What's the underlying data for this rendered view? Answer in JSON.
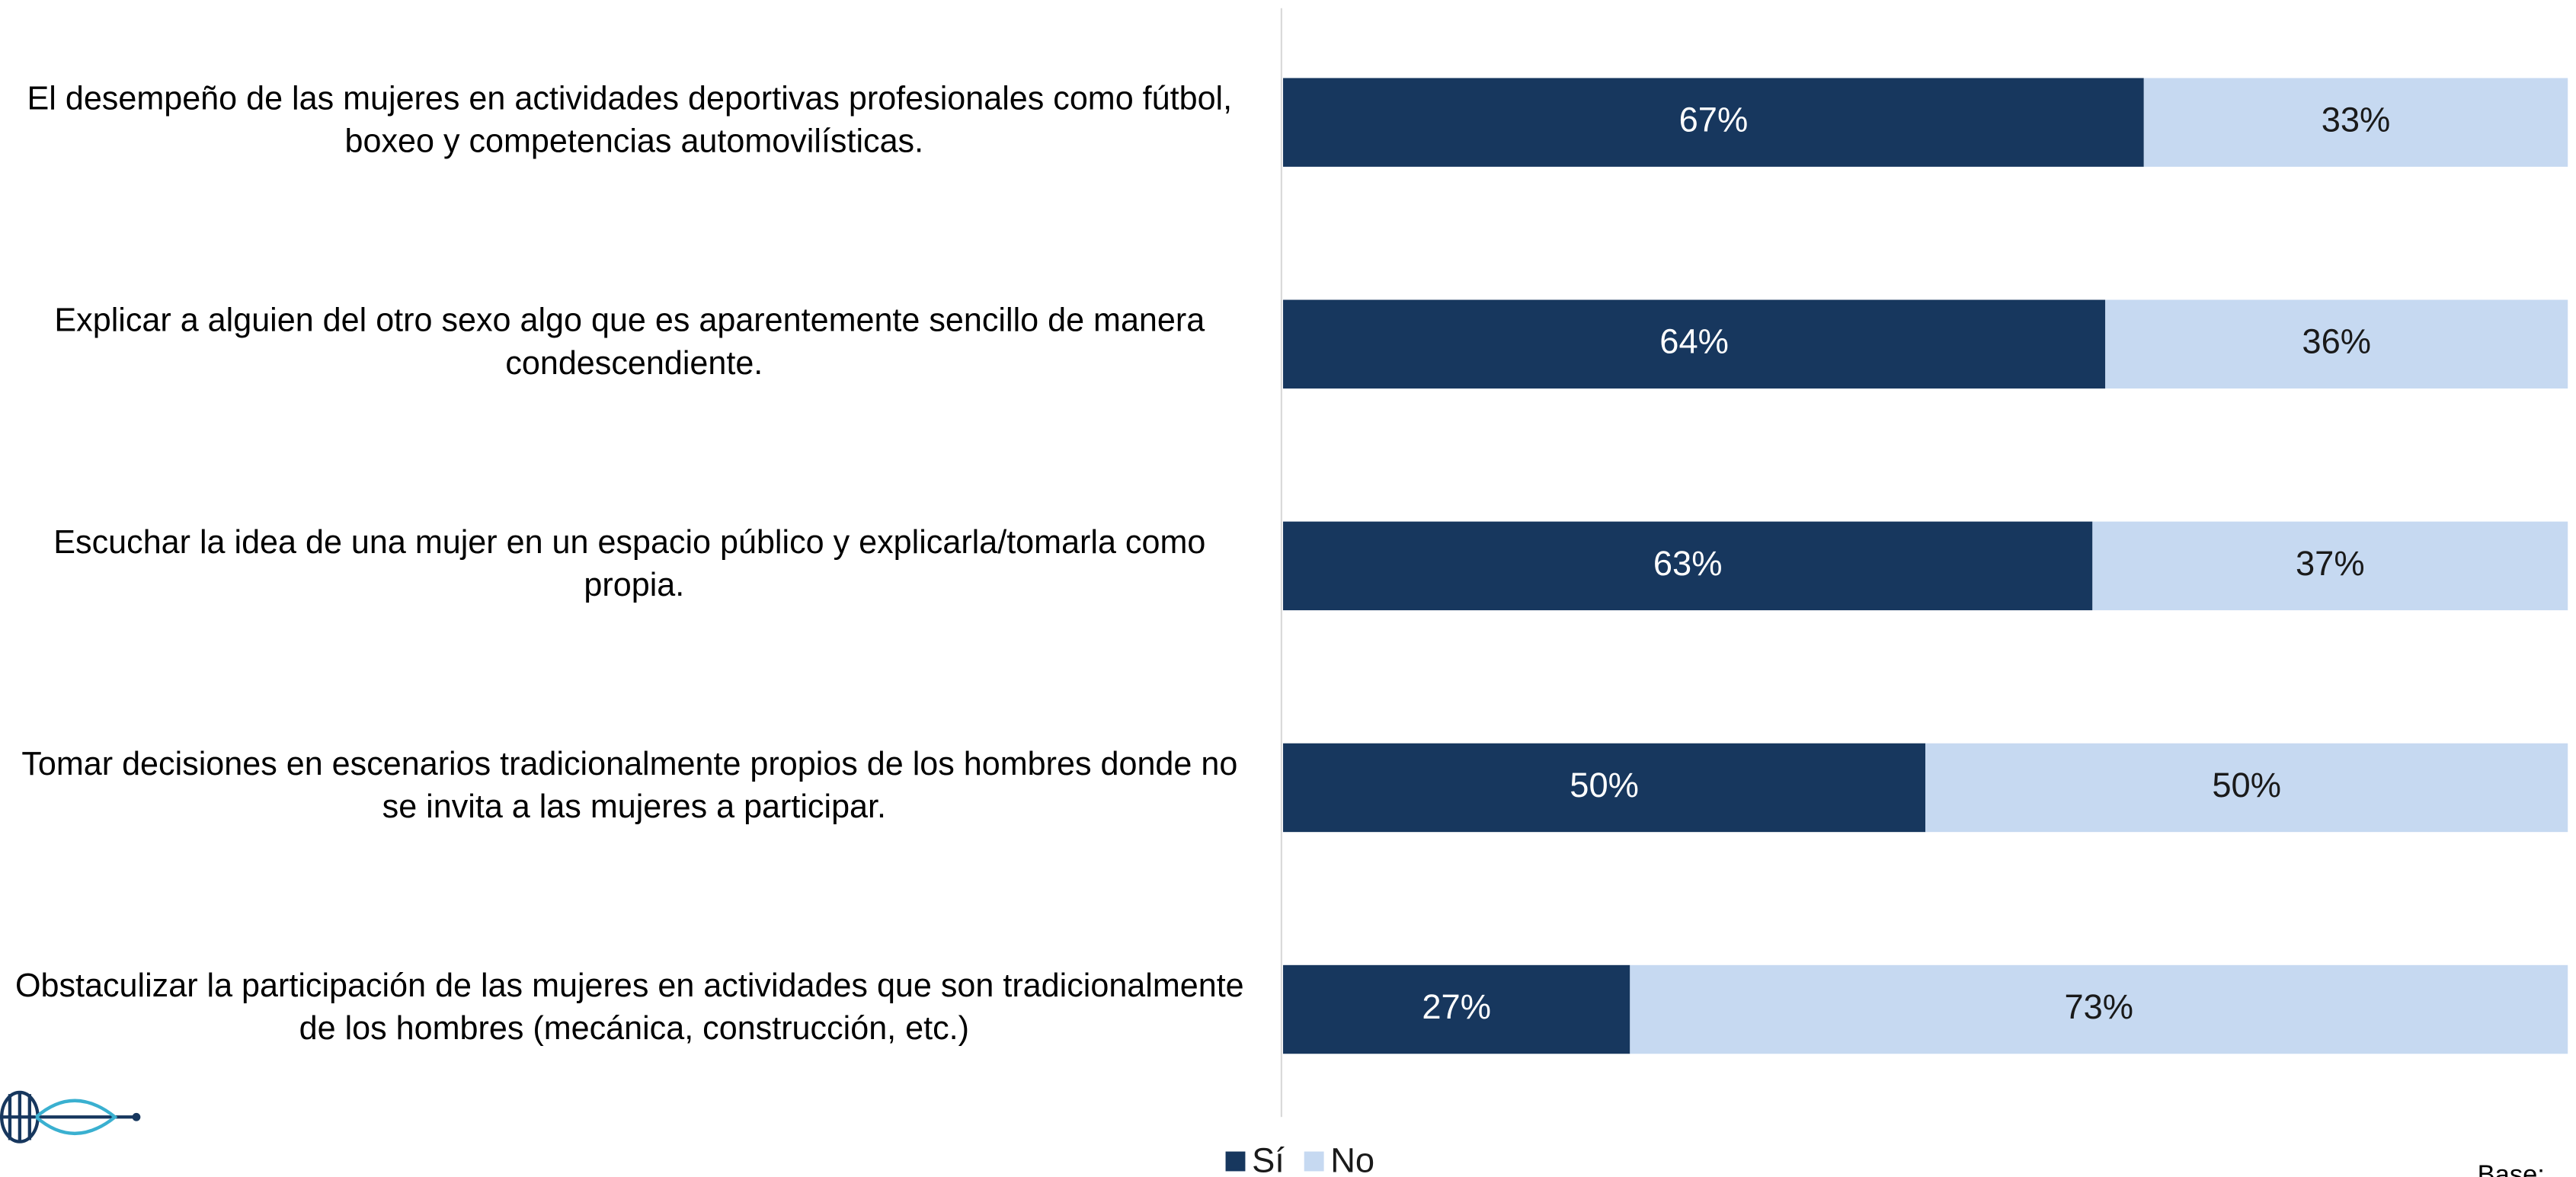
{
  "chart_data": {
    "type": "stacked_bar_horizontal",
    "categories": [
      "El desempeño de las mujeres en actividades deportivas profesionales como fútbol, boxeo y competencias automovilísticas.",
      "Explicar a alguien del otro sexo algo que es aparentemente sencillo de manera condescendiente.",
      "Escuchar la idea de una mujer en un espacio público y explicarla/tomarla como propia.",
      "Tomar decisiones en escenarios tradicionalmente propios de los hombres donde no se invita a las mujeres a participar.",
      "Obstaculizar la participación de las mujeres en actividades que son tradicionalmente de los hombres (mecánica, construcción, etc.)"
    ],
    "series": [
      {
        "name": "Sí",
        "color": "#17375e",
        "values": [
          67,
          64,
          63,
          50,
          27
        ],
        "value_labels": [
          "67%",
          "64%",
          "63%",
          "50%",
          "27%"
        ]
      },
      {
        "name": "No",
        "color": "#c6d9f1",
        "values": [
          33,
          36,
          37,
          50,
          73
        ],
        "value_labels": [
          "33%",
          "36%",
          "37%",
          "50%",
          "73%"
        ]
      }
    ],
    "xlim": [
      0,
      100
    ],
    "legend": "bottom",
    "footnote": "Base:"
  }
}
